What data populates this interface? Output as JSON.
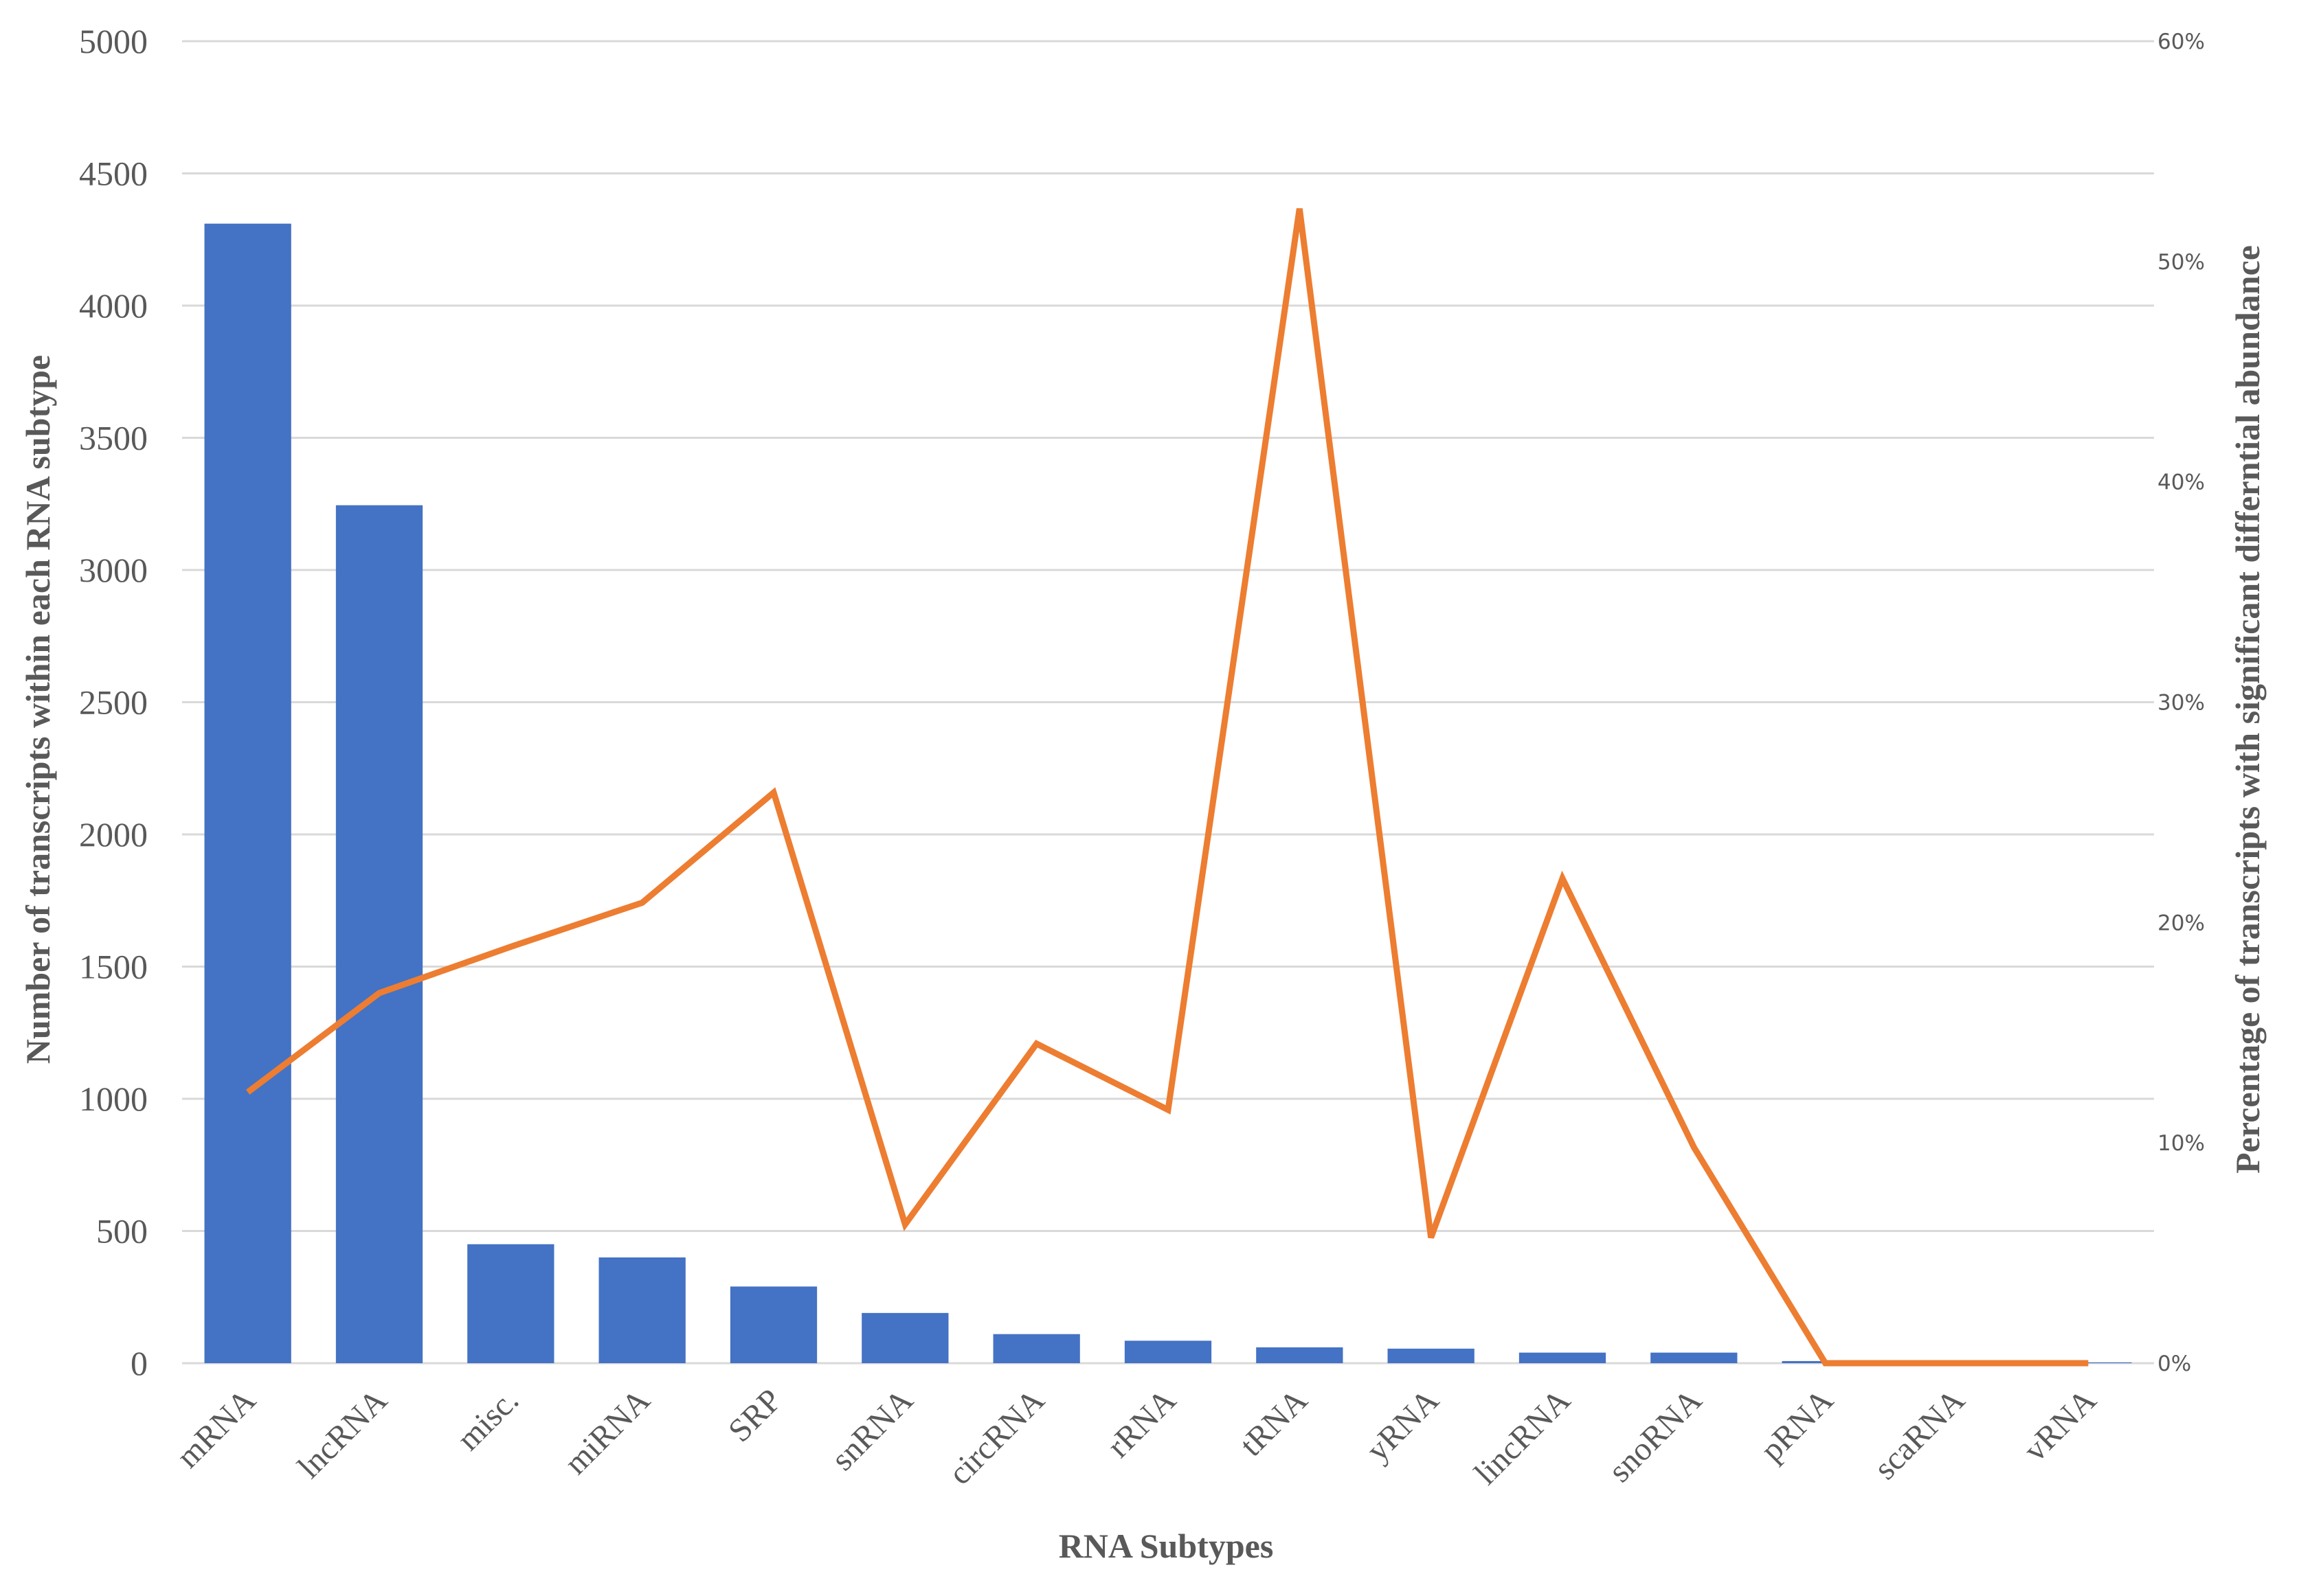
{
  "chart_data": {
    "type": "bar",
    "categories": [
      "mRNA",
      "lncRNA",
      "misc.",
      "miRNA",
      "SRP",
      "snRNA",
      "circRNA",
      "rRNA",
      "tRNA",
      "yRNA",
      "lincRNA",
      "snoRNA",
      "pRNA",
      "scaRNA",
      "vRNA"
    ],
    "series": [
      {
        "type": "bar",
        "axis": "left",
        "color": "#4472c4",
        "values": [
          4310,
          3245,
          450,
          400,
          290,
          190,
          110,
          85,
          60,
          55,
          40,
          40,
          8,
          4,
          3
        ]
      },
      {
        "type": "line",
        "axis": "right",
        "color": "#ed7d31",
        "values": [
          12.3,
          16.8,
          18.9,
          20.9,
          25.9,
          6.3,
          14.5,
          11.5,
          52.4,
          5.7,
          22.0,
          9.8,
          0,
          0,
          0
        ]
      }
    ],
    "xlabel": "RNA Subtypes",
    "ylabel": "Number of transcripts within each RNA subtype",
    "y2label": "Percentage of transcripts with significant differntial abundance",
    "ylim": [
      0,
      5000
    ],
    "y2lim": [
      0,
      60
    ],
    "yticks": [
      "0",
      "500",
      "1000",
      "1500",
      "2000",
      "2500",
      "3000",
      "3500",
      "4000",
      "4500",
      "5000"
    ],
    "y2ticks": [
      "0%",
      "10%",
      "20%",
      "30%",
      "40%",
      "50%",
      "60%"
    ],
    "grid": true,
    "legend": "none"
  }
}
